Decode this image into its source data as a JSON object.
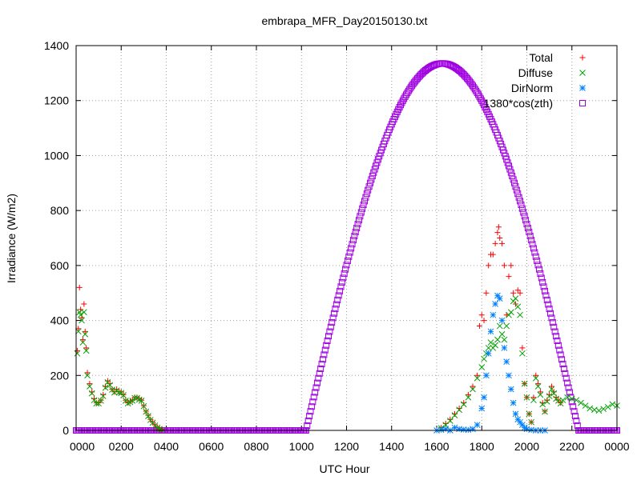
{
  "chart_data": {
    "type": "scatter",
    "title": "embrapa_MFR_Day20150130.txt",
    "xlabel": "UTC Hour",
    "ylabel": "Irradiance (W/m2)",
    "xlim": [
      0,
      24
    ],
    "ylim": [
      0,
      1400
    ],
    "grid": true,
    "legend_position": "top-right",
    "x_ticks": [
      {
        "value": 0,
        "label": "0000"
      },
      {
        "value": 2,
        "label": "0200"
      },
      {
        "value": 4,
        "label": "0400"
      },
      {
        "value": 6,
        "label": "0600"
      },
      {
        "value": 8,
        "label": "0800"
      },
      {
        "value": 10,
        "label": "1000"
      },
      {
        "value": 12,
        "label": "1200"
      },
      {
        "value": 14,
        "label": "1400"
      },
      {
        "value": 16,
        "label": "1600"
      },
      {
        "value": 18,
        "label": "1800"
      },
      {
        "value": 20,
        "label": "2000"
      },
      {
        "value": 22,
        "label": "2200"
      },
      {
        "value": 24,
        "label": "0000"
      }
    ],
    "y_ticks": [
      0,
      200,
      400,
      600,
      800,
      1000,
      1200,
      1400
    ],
    "series": [
      {
        "name": "Total",
        "marker": "plus",
        "color": "#ff0000",
        "points": [
          [
            0.05,
            290
          ],
          [
            0.1,
            370
          ],
          [
            0.15,
            520
          ],
          [
            0.2,
            440
          ],
          [
            0.25,
            410
          ],
          [
            0.3,
            330
          ],
          [
            0.35,
            460
          ],
          [
            0.4,
            360
          ],
          [
            0.45,
            300
          ],
          [
            0.5,
            210
          ],
          [
            0.6,
            170
          ],
          [
            0.7,
            140
          ],
          [
            0.8,
            115
          ],
          [
            0.9,
            100
          ],
          [
            1.0,
            100
          ],
          [
            1.1,
            110
          ],
          [
            1.2,
            130
          ],
          [
            1.3,
            160
          ],
          [
            1.4,
            180
          ],
          [
            1.5,
            170
          ],
          [
            1.6,
            150
          ],
          [
            1.7,
            140
          ],
          [
            1.8,
            150
          ],
          [
            1.9,
            140
          ],
          [
            2.0,
            140
          ],
          [
            2.1,
            130
          ],
          [
            2.2,
            110
          ],
          [
            2.3,
            100
          ],
          [
            2.4,
            105
          ],
          [
            2.5,
            110
          ],
          [
            2.6,
            120
          ],
          [
            2.7,
            120
          ],
          [
            2.8,
            115
          ],
          [
            2.9,
            110
          ],
          [
            3.0,
            90
          ],
          [
            3.1,
            70
          ],
          [
            3.2,
            55
          ],
          [
            3.3,
            40
          ],
          [
            3.4,
            30
          ],
          [
            3.5,
            20
          ],
          [
            3.6,
            12
          ],
          [
            3.7,
            6
          ],
          [
            3.8,
            3
          ],
          [
            16.2,
            10
          ],
          [
            16.4,
            25
          ],
          [
            16.6,
            40
          ],
          [
            16.8,
            60
          ],
          [
            17.0,
            80
          ],
          [
            17.2,
            100
          ],
          [
            17.4,
            130
          ],
          [
            17.6,
            160
          ],
          [
            17.8,
            200
          ],
          [
            17.9,
            380
          ],
          [
            18.0,
            420
          ],
          [
            18.1,
            400
          ],
          [
            18.2,
            500
          ],
          [
            18.3,
            600
          ],
          [
            18.4,
            640
          ],
          [
            18.5,
            640
          ],
          [
            18.6,
            680
          ],
          [
            18.7,
            720
          ],
          [
            18.75,
            740
          ],
          [
            18.8,
            700
          ],
          [
            18.9,
            680
          ],
          [
            19.0,
            600
          ],
          [
            19.1,
            420
          ],
          [
            19.2,
            560
          ],
          [
            19.3,
            600
          ],
          [
            19.4,
            500
          ],
          [
            19.5,
            460
          ],
          [
            19.6,
            510
          ],
          [
            19.7,
            500
          ],
          [
            19.8,
            300
          ],
          [
            19.9,
            170
          ],
          [
            20.0,
            120
          ],
          [
            20.1,
            60
          ],
          [
            20.2,
            30
          ],
          [
            20.3,
            120
          ],
          [
            20.4,
            200
          ],
          [
            20.5,
            170
          ],
          [
            20.6,
            140
          ],
          [
            20.7,
            100
          ],
          [
            20.8,
            70
          ],
          [
            20.9,
            110
          ],
          [
            21.0,
            130
          ],
          [
            21.1,
            160
          ],
          [
            21.2,
            140
          ],
          [
            21.3,
            120
          ],
          [
            21.4,
            110
          ],
          [
            21.5,
            100
          ]
        ]
      },
      {
        "name": "Diffuse",
        "marker": "cross",
        "color": "#00a000",
        "points": [
          [
            0.05,
            280
          ],
          [
            0.1,
            360
          ],
          [
            0.15,
            430
          ],
          [
            0.2,
            420
          ],
          [
            0.25,
            400
          ],
          [
            0.3,
            320
          ],
          [
            0.35,
            430
          ],
          [
            0.4,
            350
          ],
          [
            0.45,
            290
          ],
          [
            0.5,
            200
          ],
          [
            0.6,
            160
          ],
          [
            0.7,
            135
          ],
          [
            0.8,
            110
          ],
          [
            0.9,
            98
          ],
          [
            1.0,
            98
          ],
          [
            1.1,
            108
          ],
          [
            1.2,
            125
          ],
          [
            1.3,
            155
          ],
          [
            1.4,
            175
          ],
          [
            1.5,
            165
          ],
          [
            1.6,
            148
          ],
          [
            1.7,
            138
          ],
          [
            1.8,
            145
          ],
          [
            1.9,
            138
          ],
          [
            2.0,
            136
          ],
          [
            2.1,
            128
          ],
          [
            2.2,
            108
          ],
          [
            2.3,
            98
          ],
          [
            2.4,
            103
          ],
          [
            2.5,
            108
          ],
          [
            2.6,
            118
          ],
          [
            2.7,
            118
          ],
          [
            2.8,
            112
          ],
          [
            2.9,
            108
          ],
          [
            3.0,
            88
          ],
          [
            3.1,
            68
          ],
          [
            3.2,
            52
          ],
          [
            3.3,
            38
          ],
          [
            3.4,
            28
          ],
          [
            3.5,
            18
          ],
          [
            3.6,
            10
          ],
          [
            3.7,
            5
          ],
          [
            3.8,
            2
          ],
          [
            16.2,
            8
          ],
          [
            16.4,
            20
          ],
          [
            16.6,
            35
          ],
          [
            16.8,
            55
          ],
          [
            17.0,
            75
          ],
          [
            17.2,
            95
          ],
          [
            17.4,
            120
          ],
          [
            17.6,
            150
          ],
          [
            17.8,
            190
          ],
          [
            18.0,
            230
          ],
          [
            18.1,
            260
          ],
          [
            18.2,
            280
          ],
          [
            18.3,
            300
          ],
          [
            18.4,
            320
          ],
          [
            18.5,
            300
          ],
          [
            18.6,
            310
          ],
          [
            18.7,
            330
          ],
          [
            18.8,
            380
          ],
          [
            18.9,
            350
          ],
          [
            19.0,
            330
          ],
          [
            19.1,
            380
          ],
          [
            19.2,
            420
          ],
          [
            19.3,
            430
          ],
          [
            19.4,
            470
          ],
          [
            19.5,
            480
          ],
          [
            19.6,
            450
          ],
          [
            19.7,
            420
          ],
          [
            19.8,
            280
          ],
          [
            19.9,
            170
          ],
          [
            20.0,
            120
          ],
          [
            20.1,
            60
          ],
          [
            20.2,
            30
          ],
          [
            20.3,
            110
          ],
          [
            20.4,
            190
          ],
          [
            20.5,
            160
          ],
          [
            20.6,
            130
          ],
          [
            20.7,
            95
          ],
          [
            20.8,
            68
          ],
          [
            20.9,
            105
          ],
          [
            21.0,
            125
          ],
          [
            21.1,
            150
          ],
          [
            21.2,
            135
          ],
          [
            21.3,
            115
          ],
          [
            21.4,
            108
          ],
          [
            21.5,
            98
          ],
          [
            21.6,
            110
          ],
          [
            21.8,
            120
          ],
          [
            22.0,
            115
          ],
          [
            22.2,
            110
          ],
          [
            22.4,
            100
          ],
          [
            22.6,
            90
          ],
          [
            22.8,
            80
          ],
          [
            23.0,
            75
          ],
          [
            23.2,
            72
          ],
          [
            23.4,
            78
          ],
          [
            23.6,
            85
          ],
          [
            23.8,
            95
          ],
          [
            24.0,
            90
          ]
        ]
      },
      {
        "name": "DirNorm",
        "marker": "star",
        "color": "#0080ff",
        "points": [
          [
            16.0,
            0
          ],
          [
            16.2,
            2
          ],
          [
            16.4,
            5
          ],
          [
            16.6,
            0
          ],
          [
            16.8,
            10
          ],
          [
            17.0,
            5
          ],
          [
            17.2,
            3
          ],
          [
            17.4,
            2
          ],
          [
            17.6,
            5
          ],
          [
            17.8,
            20
          ],
          [
            18.0,
            80
          ],
          [
            18.1,
            120
          ],
          [
            18.2,
            200
          ],
          [
            18.3,
            280
          ],
          [
            18.4,
            360
          ],
          [
            18.5,
            420
          ],
          [
            18.6,
            460
          ],
          [
            18.7,
            490
          ],
          [
            18.8,
            480
          ],
          [
            18.9,
            400
          ],
          [
            19.0,
            300
          ],
          [
            19.1,
            250
          ],
          [
            19.2,
            200
          ],
          [
            19.3,
            150
          ],
          [
            19.4,
            100
          ],
          [
            19.5,
            60
          ],
          [
            19.6,
            40
          ],
          [
            19.7,
            30
          ],
          [
            19.8,
            20
          ],
          [
            19.9,
            10
          ],
          [
            20.0,
            5
          ],
          [
            20.2,
            2
          ],
          [
            20.4,
            0
          ],
          [
            20.6,
            0
          ],
          [
            20.8,
            0
          ]
        ]
      },
      {
        "name": "1380*cos(zth)",
        "marker": "square",
        "color": "#a000e0",
        "curve": {
          "sunrise": 10.2,
          "sunset": 22.3,
          "peak_x": 16.25,
          "peak_y": 1335
        }
      }
    ]
  }
}
